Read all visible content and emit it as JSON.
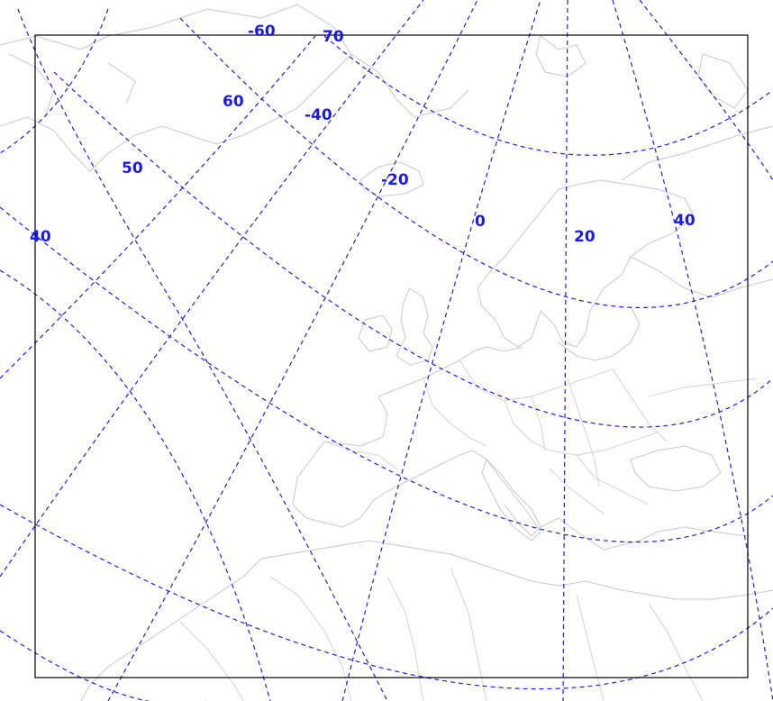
{
  "map": {
    "colors": {
      "background": "#ffffff",
      "frame": "#000000",
      "graticule": "#1f1fe0",
      "label": "#1a1ae6",
      "coastline": "#c8c8c8"
    },
    "longitude_labels": [
      "-60",
      "-40",
      "-20",
      "0",
      "20",
      "40"
    ],
    "latitude_labels": [
      "70",
      "60",
      "50",
      "40"
    ]
  }
}
